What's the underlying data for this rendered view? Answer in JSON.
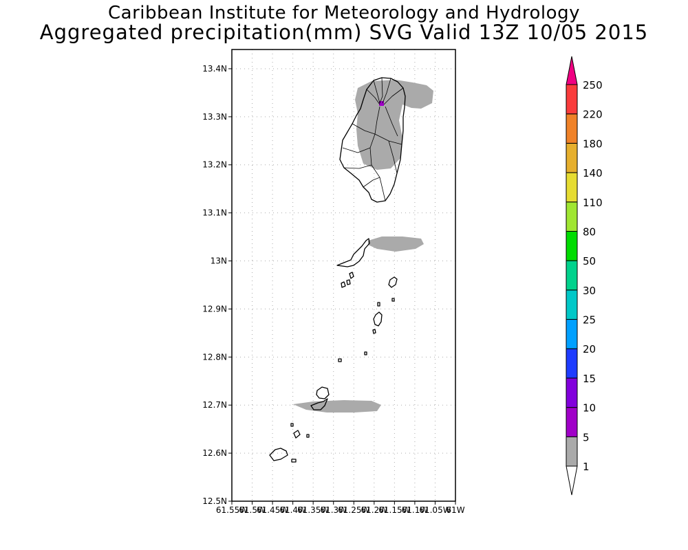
{
  "header": {
    "title": "Caribbean Institute for Meteorology and Hydrology",
    "subtitle": "Aggregated precipitation(mm) SVG Valid 13Z 10/05 2015"
  },
  "map": {
    "lat_range": [
      12.5,
      13.44
    ],
    "lon_range": [
      -61.55,
      -61.0
    ],
    "lat_ticks": [
      {
        "value": 13.4,
        "label": "13.4N"
      },
      {
        "value": 13.3,
        "label": "13.3N"
      },
      {
        "value": 13.2,
        "label": "13.2N"
      },
      {
        "value": 13.1,
        "label": "13.1N"
      },
      {
        "value": 13.0,
        "label": "13N"
      },
      {
        "value": 12.9,
        "label": "12.9N"
      },
      {
        "value": 12.8,
        "label": "12.8N"
      },
      {
        "value": 12.7,
        "label": "12.7N"
      },
      {
        "value": 12.6,
        "label": "12.6N"
      },
      {
        "value": 12.5,
        "label": "12.5N"
      }
    ],
    "lon_ticks": [
      {
        "value": -61.55,
        "label": "61.55W"
      },
      {
        "value": -61.5,
        "label": "61.5W"
      },
      {
        "value": -61.45,
        "label": "61.45W"
      },
      {
        "value": -61.4,
        "label": "61.4W"
      },
      {
        "value": -61.35,
        "label": "61.35W"
      },
      {
        "value": -61.3,
        "label": "61.3W"
      },
      {
        "value": -61.25,
        "label": "61.25W"
      },
      {
        "value": -61.2,
        "label": "61.2W"
      },
      {
        "value": -61.15,
        "label": "61.15W"
      },
      {
        "value": -61.1,
        "label": "61.1W"
      },
      {
        "value": -61.05,
        "label": "61.05W"
      },
      {
        "value": -61.0,
        "label": "61W"
      }
    ],
    "grid": true
  },
  "colorbar": {
    "levels": [
      {
        "label": "1",
        "color": "#aaaaaa"
      },
      {
        "label": "5",
        "color": "#a000c8"
      },
      {
        "label": "10",
        "color": "#8200dc"
      },
      {
        "label": "15",
        "color": "#1e3cff"
      },
      {
        "label": "20",
        "color": "#00a0ff"
      },
      {
        "label": "25",
        "color": "#00c8c8"
      },
      {
        "label": "30",
        "color": "#00d28c"
      },
      {
        "label": "50",
        "color": "#00dc00"
      },
      {
        "label": "80",
        "color": "#a0e632"
      },
      {
        "label": "110",
        "color": "#e6dc32"
      },
      {
        "label": "140",
        "color": "#e6af2d"
      },
      {
        "label": "180",
        "color": "#f08228"
      },
      {
        "label": "220",
        "color": "#fa3c3c"
      },
      {
        "label": "250",
        "color": ""
      }
    ],
    "under_color": "#ffffff",
    "over_color": "#f00082"
  },
  "colors": {
    "precip_light": "#aaaaaa",
    "precip_moderate": "#a000c8",
    "coastline": "#000000",
    "gridline": "#aaaaaa"
  }
}
